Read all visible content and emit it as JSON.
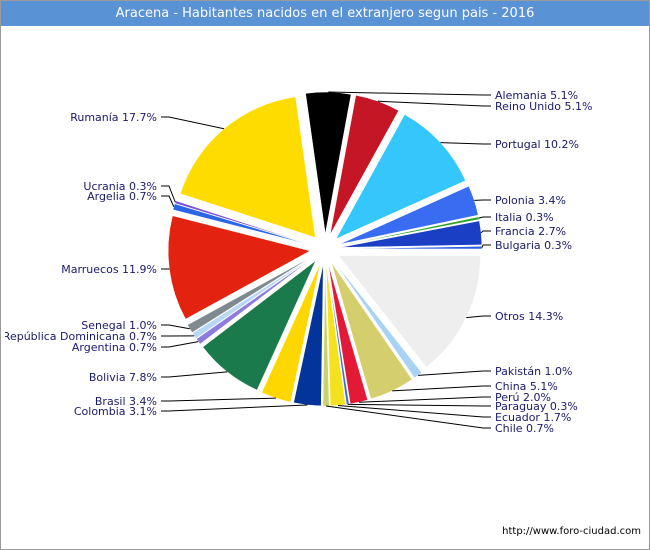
{
  "chart_data": {
    "type": "pie",
    "title": "Aracena - Habitantes nacidos en el extranjero segun pais - 2016",
    "slices": [
      {
        "label": "Alemania 5.1%",
        "value": 5.1,
        "color": "#000000"
      },
      {
        "label": "Reino Unido 5.1%",
        "value": 5.1,
        "color": "#c41624"
      },
      {
        "label": "Portugal 10.2%",
        "value": 10.2,
        "color": "#35c6fb"
      },
      {
        "label": "Polonia 3.4%",
        "value": 3.4,
        "color": "#3a6cf2"
      },
      {
        "label": "Italia 0.3%",
        "value": 0.3,
        "color": "#2da02d"
      },
      {
        "label": "Francia 2.7%",
        "value": 2.7,
        "color": "#1a3fc4"
      },
      {
        "label": "Bulgaria 0.3%",
        "value": 0.3,
        "color": "#2a60e0"
      },
      {
        "label": "Otros 14.3%",
        "value": 14.3,
        "color": "#eeeeee"
      },
      {
        "label": "Pakistán 1.0%",
        "value": 1.0,
        "color": "#a9d3f5"
      },
      {
        "label": "China 5.1%",
        "value": 5.1,
        "color": "#d4cf6c"
      },
      {
        "label": "Perú 2.0%",
        "value": 2.0,
        "color": "#e31a36"
      },
      {
        "label": "Paraguay 0.3%",
        "value": 0.3,
        "color": "#3b6fd8"
      },
      {
        "label": "Ecuador 1.7%",
        "value": 1.7,
        "color": "#f3e21d"
      },
      {
        "label": "Chile 0.7%",
        "value": 0.7,
        "color": "#c8d36a"
      },
      {
        "label": "Colombia 3.1%",
        "value": 3.1,
        "color": "#03349a"
      },
      {
        "label": "Brasil 3.4%",
        "value": 3.4,
        "color": "#ffd700"
      },
      {
        "label": "Bolivia 7.8%",
        "value": 7.8,
        "color": "#1a7a4c"
      },
      {
        "label": "Argentina 0.7%",
        "value": 0.7,
        "color": "#8d7be0"
      },
      {
        "label": "República Dominicana 0.7%",
        "value": 0.7,
        "color": "#b6d7f7"
      },
      {
        "label": "Senegal 1.0%",
        "value": 1.0,
        "color": "#7f8a90"
      },
      {
        "label": "Marruecos 11.9%",
        "value": 11.9,
        "color": "#e3220f"
      },
      {
        "label": "Argelia 0.7%",
        "value": 0.7,
        "color": "#2a66e6"
      },
      {
        "label": "Ucrania 0.3%",
        "value": 0.3,
        "color": "#7b4fd1"
      },
      {
        "label": "Rumanía 17.7%",
        "value": 17.7,
        "color": "#ffdc00"
      }
    ],
    "legend": "none"
  },
  "footer": {
    "url": "http://www.foro-ciudad.com"
  }
}
